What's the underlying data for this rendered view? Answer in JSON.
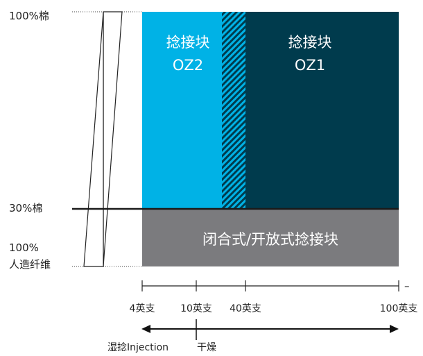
{
  "y_labels": {
    "top": "100%棉",
    "middle": "30%棉",
    "bottom_line1": "100%",
    "bottom_line2": "人造纤维"
  },
  "regions": {
    "oz2": {
      "line1": "捻接块",
      "line2": "OZ2",
      "color": "#00b2e6"
    },
    "oz1": {
      "line1": "捻接块",
      "line2": "OZ1",
      "color": "#003b4d"
    },
    "closed_open": {
      "label": "闭合式/开放式捻接块",
      "color": "#7b7b7e"
    }
  },
  "axis": {
    "ticks": [
      "4英支",
      "10英支",
      "40英支",
      "100英支"
    ],
    "end_mark": "–"
  },
  "methods": {
    "left": "湿捻Injection",
    "right": "干燥"
  }
}
